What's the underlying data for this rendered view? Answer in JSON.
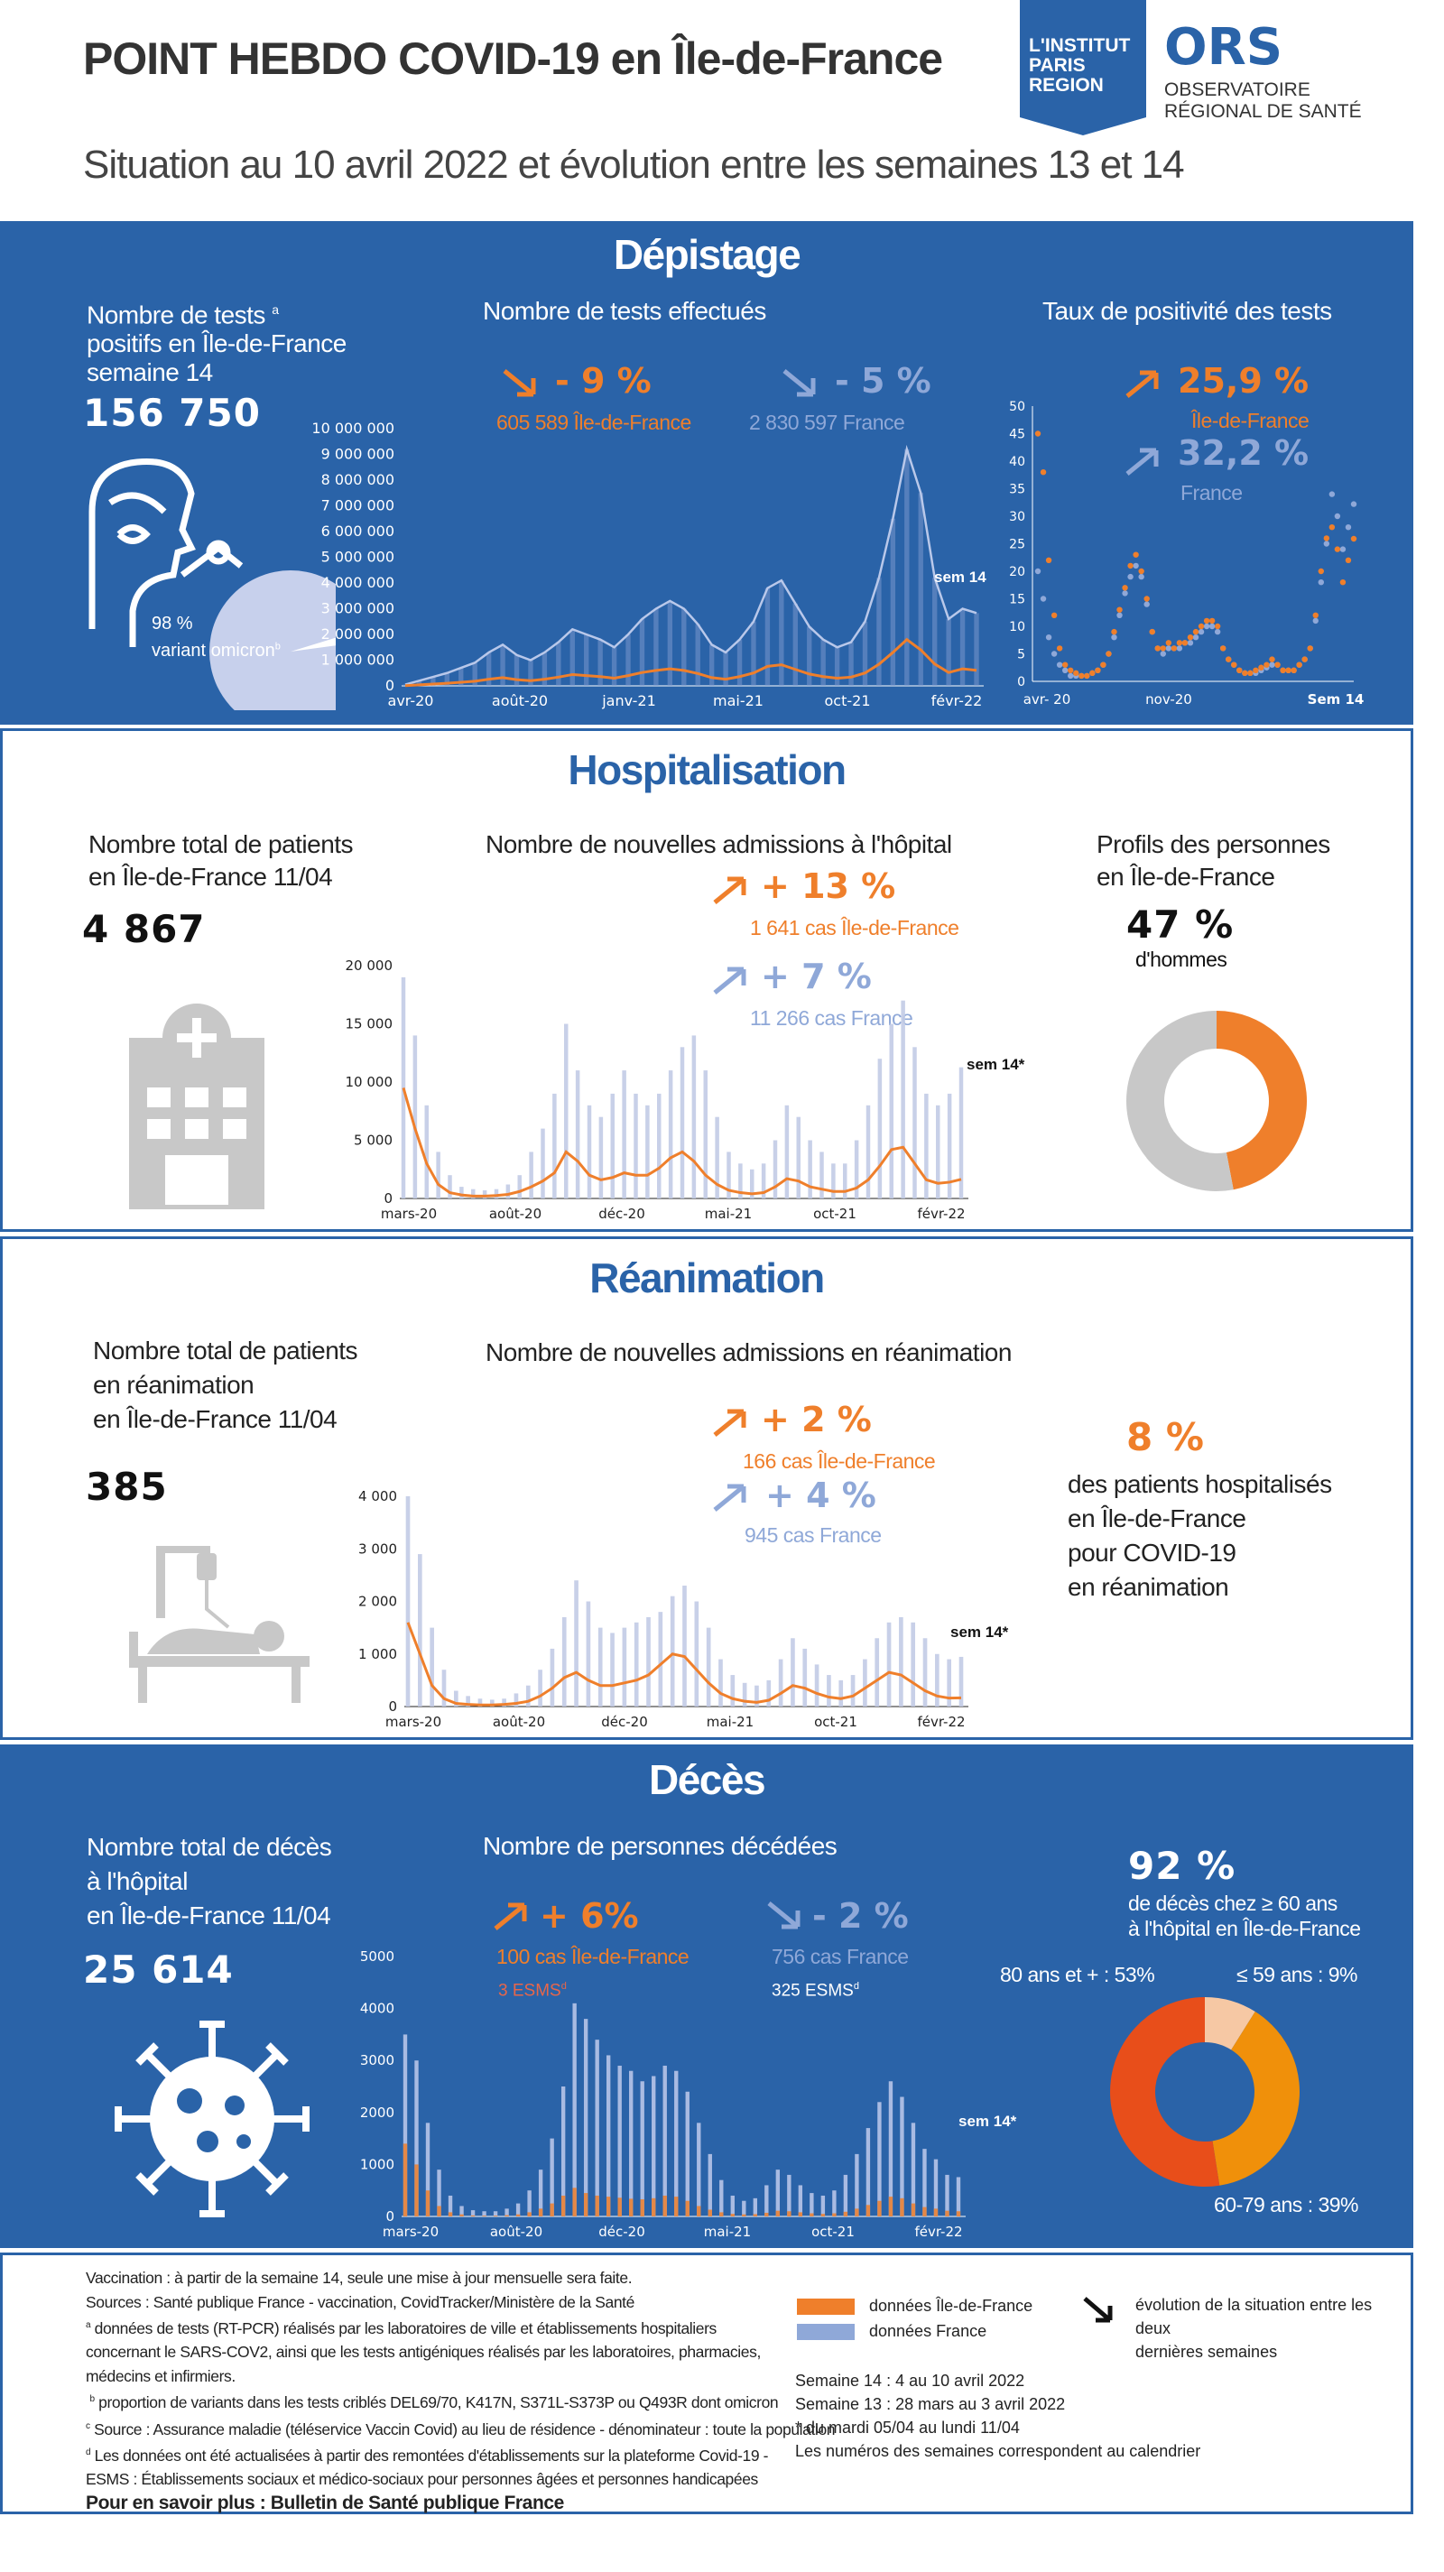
{
  "header": {
    "title": "POINT HEBDO COVID-19 en Île-de-France",
    "subtitle": "Situation au 10 avril 2022 et évolution entre les semaines 13 et 14",
    "logo1": [
      "L'INSTITUT",
      "PARIS",
      "REGION"
    ],
    "logo2_big": "ORS",
    "logo2_small": [
      "OBSERVATOIRE",
      "RÉGIONAL DE SANTÉ"
    ]
  },
  "colors": {
    "blue": "#2a63a8",
    "orange": "#ef7f2b",
    "lightblue": "#8fa8d8",
    "grey": "#c8c8c8"
  },
  "depistage": {
    "title": "Dépistage",
    "left_label": [
      "Nombre de tests ",
      "positifs en Île-de-France",
      "semaine 14"
    ],
    "left_label_sup": "a",
    "left_value": "156 750",
    "pie_pct": "98 %",
    "pie_label": "variant omicron",
    "pie_sup": "b",
    "mid_title": "Nombre de tests effectués",
    "idf_pct": "- 9 %",
    "idf_sub": "605 589 Île-de-France",
    "fr_pct": "- 5 %",
    "fr_sub": "2 830 597  France",
    "right_title": "Taux de positivité des tests",
    "idf_rate": "25,9 %",
    "idf_rate_sub": "Île-de-France",
    "fr_rate": "32,2 %",
    "fr_rate_sub": "France",
    "sem_label": "sem 14",
    "rate_sem_label": "Sem 14"
  },
  "hospitalisation": {
    "title": "Hospitalisation",
    "left_label": [
      "Nombre total de patients",
      "en Île-de-France 11/04"
    ],
    "left_value": "4 867",
    "mid_title": "Nombre de nouvelles admissions à l'hôpital",
    "idf_pct": "+ 13 %",
    "idf_sub": "1 641 cas Île-de-France",
    "fr_pct": "+ 7 %",
    "fr_sub": "11 266 cas France",
    "sem_label": "sem 14*",
    "right_title": [
      "Profils des personnes",
      "en Île-de-France"
    ],
    "right_value": "47 %",
    "right_sub": "d'hommes"
  },
  "reanimation": {
    "title": "Réanimation",
    "left_label": [
      "Nombre total de patients",
      "en réanimation",
      "en Île-de-France 11/04"
    ],
    "left_value": "385",
    "mid_title": "Nombre de nouvelles admissions en réanimation",
    "idf_pct": "+ 2 %",
    "idf_sub": "166 cas Île-de-France",
    "fr_pct": "+ 4 %",
    "fr_sub": "945 cas France",
    "sem_label": "sem 14*",
    "right_value": "8 %",
    "right_text": [
      "des patients hospitalisés",
      "en Île-de-France",
      "pour COVID-19",
      "en réanimation"
    ]
  },
  "deces": {
    "title": "Décès",
    "left_label": [
      "Nombre total de décès",
      "à l'hôpital",
      "en Île-de-France 11/04"
    ],
    "left_value": "25 614",
    "mid_title": "Nombre de personnes décédées",
    "idf_pct": "+ 6%",
    "idf_sub": "100 cas Île-de-France",
    "idf_esms": "3 ESMS",
    "esms_sup": "d",
    "fr_pct": "- 2 %",
    "fr_sub": "756 cas France",
    "fr_esms": "325 ESMS",
    "sem_label": "sem 14*",
    "right_value": "92 %",
    "right_text": [
      "de décès chez ≥ 60 ans",
      "à l'hôpital en Île-de-France"
    ],
    "donut_labels": [
      "80 ans et + : 53%",
      "≤ 59 ans : 9%",
      "60-79 ans : 39%"
    ]
  },
  "footer": {
    "lines": [
      "Vaccination : à partir de la semaine 14, seule une mise à jour mensuelle sera faite.",
      "Sources : Santé publique France - vaccination, CovidTracker/Ministère de la Santé",
      "données de tests (RT-PCR) réalisés par les laboratoires de ville et établissements hospitaliers",
      "concernant le SARS-COV2, ainsi que les tests antigéniques réalisés par les laboratoires, pharmacies,",
      "médecins et infirmiers.",
      "proportion de variants dans les tests criblés DEL69/70, K417N, S371L-S373P ou Q493R dont omicron",
      "Source : Assurance maladie (téléservice Vaccin Covid) au lieu de résidence - dénominateur : toute la population",
      "Les données ont été actualisées à partir des remontées d'établissements sur la plateforme Covid-19 -",
      "ESMS : Établissements sociaux et  médico-sociaux pour personnes âgées et personnes handicapées"
    ],
    "sups": [
      "a",
      "b",
      "c",
      "d"
    ],
    "more": "Pour en savoir plus : Bulletin de Santé publique France",
    "legend_idf": "données Île-de-France",
    "legend_fr": "données France",
    "legend_arrow": [
      "évolution de la situation entre les deux",
      "dernières semaines"
    ],
    "weeks": [
      "Semaine 14 :   4 au 10 avril 2022",
      "Semaine 13 :   28 mars au 3 avril 2022",
      "* du mardi 05/04 au lundi 11/04",
      "Les numéros des semaines correspondent au calendrier"
    ]
  },
  "chart_data": [
    {
      "type": "area",
      "name": "Nombre de tests effectués",
      "x_ticks": [
        "avr-20",
        "août-20",
        "janv-21",
        "mai-21",
        "oct-21",
        "févr-22"
      ],
      "y_ticks": [
        "0",
        "1 000 000",
        "2 000 000",
        "3 000 000",
        "4 000 000",
        "5 000 000",
        "6 000 000",
        "7 000 000",
        "8 000 000",
        "9 000 000",
        "10 000 000"
      ],
      "ylim": [
        0,
        10000000
      ],
      "series": [
        {
          "name": "France",
          "values": [
            50000,
            200000,
            350000,
            500000,
            700000,
            900000,
            1300000,
            1600000,
            1200000,
            1000000,
            1300000,
            1700000,
            2200000,
            2000000,
            1800000,
            1500000,
            2000000,
            2600000,
            3000000,
            3300000,
            3000000,
            2400000,
            1600000,
            1300000,
            1800000,
            2500000,
            3800000,
            4100000,
            3200000,
            2300000,
            1800000,
            1500000,
            1700000,
            2500000,
            4200000,
            6500000,
            9200000,
            7500000,
            4200000,
            2600000,
            3000000,
            2830597
          ]
        },
        {
          "name": "Île-de-France",
          "values": [
            10000,
            40000,
            70000,
            100000,
            140000,
            180000,
            260000,
            320000,
            240000,
            200000,
            260000,
            340000,
            440000,
            400000,
            360000,
            300000,
            400000,
            520000,
            600000,
            660000,
            600000,
            480000,
            320000,
            260000,
            360000,
            500000,
            760000,
            820000,
            640000,
            460000,
            360000,
            300000,
            340000,
            500000,
            840000,
            1300000,
            1800000,
            1400000,
            850000,
            520000,
            660000,
            605589
          ]
        }
      ]
    },
    {
      "type": "scatter",
      "name": "Taux de positivité des tests",
      "x_ticks": [
        "avr- 20",
        "nov-20",
        "Sem 14"
      ],
      "y_ticks": [
        "0",
        "5",
        "10",
        "15",
        "20",
        "25",
        "30",
        "35",
        "40",
        "45",
        "50"
      ],
      "ylim": [
        0,
        50
      ],
      "series": [
        {
          "name": "Île-de-France",
          "values": [
            45,
            38,
            22,
            12,
            6,
            3,
            2,
            1.5,
            1,
            1,
            1.5,
            2,
            3,
            5,
            9,
            13,
            17,
            21,
            23,
            20,
            15,
            9,
            6,
            6,
            7,
            6,
            7,
            7,
            8,
            9,
            10,
            11,
            11,
            10,
            6,
            4,
            3,
            2,
            1.5,
            1.5,
            2,
            2.5,
            3,
            4,
            3,
            2,
            2,
            2,
            3,
            4,
            6,
            12,
            20,
            26,
            28,
            24,
            18,
            22,
            25.9
          ]
        },
        {
          "name": "France",
          "values": [
            20,
            15,
            8,
            5,
            3,
            2,
            1,
            1,
            1,
            1,
            1.5,
            2,
            3,
            5,
            8,
            12,
            16,
            19,
            21,
            19,
            14,
            9,
            6,
            5,
            6,
            6,
            6,
            7,
            7,
            8,
            9,
            10,
            10,
            9,
            6,
            4,
            3,
            2,
            1.5,
            1.5,
            1.5,
            2,
            2.5,
            3,
            3,
            2,
            2,
            2,
            3,
            4,
            6,
            11,
            18,
            25,
            34,
            30,
            24,
            28,
            32.2
          ]
        }
      ]
    },
    {
      "type": "area",
      "name": "Nombre de nouvelles admissions à l'hôpital",
      "x_ticks": [
        "mars-20",
        "août-20",
        "déc-20",
        "mai-21",
        "oct-21",
        "févr-22"
      ],
      "y_ticks": [
        "0",
        "5 000",
        "10 000",
        "15 000",
        "20 000"
      ],
      "ylim": [
        0,
        20000
      ],
      "series": [
        {
          "name": "France",
          "values": [
            19000,
            14000,
            8000,
            4000,
            2000,
            1000,
            800,
            700,
            800,
            1200,
            2000,
            4000,
            6000,
            9000,
            15000,
            11000,
            8000,
            7000,
            9000,
            11000,
            9000,
            8000,
            9000,
            11000,
            13000,
            14000,
            11000,
            7000,
            4000,
            3000,
            2500,
            3000,
            5000,
            8000,
            7000,
            5000,
            4000,
            3000,
            3000,
            5000,
            8000,
            12000,
            15000,
            17000,
            13000,
            9000,
            8000,
            9000,
            11266
          ]
        },
        {
          "name": "Île-de-France",
          "values": [
            9500,
            6000,
            3000,
            1200,
            500,
            300,
            200,
            200,
            250,
            350,
            600,
            1000,
            1500,
            2200,
            4000,
            3200,
            2000,
            1600,
            1800,
            2200,
            2000,
            2000,
            2600,
            3500,
            4000,
            3200,
            2000,
            1200,
            700,
            500,
            400,
            500,
            1000,
            1700,
            1500,
            1000,
            800,
            600,
            600,
            900,
            1600,
            2800,
            4200,
            4400,
            3000,
            1600,
            1300,
            1400,
            1641
          ]
        }
      ]
    },
    {
      "type": "area",
      "name": "Nombre de nouvelles admissions en réanimation",
      "x_ticks": [
        "mars-20",
        "août-20",
        "déc-20",
        "mai-21",
        "oct-21",
        "févr-22"
      ],
      "y_ticks": [
        "0",
        "1 000",
        "2 000",
        "3 000",
        "4 000"
      ],
      "ylim": [
        0,
        4000
      ],
      "series": [
        {
          "name": "France",
          "values": [
            4000,
            2900,
            1500,
            700,
            300,
            200,
            150,
            130,
            150,
            250,
            400,
            700,
            1100,
            1700,
            2400,
            2000,
            1500,
            1400,
            1500,
            1600,
            1700,
            1800,
            2100,
            2300,
            2000,
            1500,
            900,
            600,
            450,
            400,
            500,
            900,
            1300,
            1100,
            800,
            600,
            500,
            600,
            900,
            1300,
            1600,
            1700,
            1600,
            1300,
            1000,
            900,
            945
          ]
        },
        {
          "name": "Île-de-France",
          "values": [
            1600,
            1000,
            400,
            150,
            60,
            40,
            30,
            30,
            40,
            60,
            100,
            200,
            350,
            550,
            650,
            500,
            400,
            400,
            450,
            500,
            600,
            800,
            1000,
            950,
            700,
            450,
            250,
            150,
            100,
            80,
            120,
            250,
            400,
            350,
            250,
            180,
            150,
            200,
            350,
            500,
            650,
            600,
            450,
            300,
            200,
            160,
            166
          ]
        }
      ]
    },
    {
      "type": "bar",
      "name": "Nombre de personnes décédées",
      "x_ticks": [
        "mars-20",
        "août-20",
        "déc-20",
        "mai-21",
        "oct-21",
        "févr-22"
      ],
      "y_ticks": [
        "0",
        "1000",
        "2000",
        "3000",
        "4000",
        "5000"
      ],
      "ylim": [
        0,
        5000
      ],
      "series": [
        {
          "name": "France",
          "values": [
            3500,
            3000,
            1800,
            900,
            400,
            200,
            120,
            100,
            100,
            150,
            250,
            500,
            900,
            1500,
            2500,
            4100,
            3800,
            3400,
            3100,
            2900,
            2800,
            2600,
            2700,
            2900,
            2800,
            2400,
            1800,
            1200,
            700,
            400,
            300,
            350,
            600,
            900,
            800,
            600,
            450,
            400,
            500,
            800,
            1200,
            1700,
            2200,
            2600,
            2300,
            1800,
            1300,
            1100,
            800,
            756
          ]
        },
        {
          "name": "Île-de-France",
          "values": [
            1400,
            1000,
            500,
            200,
            80,
            40,
            20,
            15,
            15,
            25,
            40,
            80,
            150,
            250,
            400,
            550,
            450,
            400,
            380,
            360,
            340,
            330,
            350,
            400,
            380,
            300,
            200,
            130,
            80,
            50,
            40,
            45,
            70,
            110,
            100,
            80,
            60,
            50,
            60,
            90,
            150,
            220,
            300,
            380,
            350,
            250,
            180,
            150,
            110,
            100
          ]
        }
      ]
    },
    {
      "type": "pie",
      "name": "Profils des personnes en Île-de-France",
      "categories": [
        "hommes",
        "femmes"
      ],
      "values": [
        47,
        53
      ]
    },
    {
      "type": "pie",
      "name": "décès par âge",
      "categories": [
        "80 ans et +",
        "≤ 59 ans",
        "60-79 ans"
      ],
      "values": [
        53,
        9,
        39
      ]
    }
  ]
}
